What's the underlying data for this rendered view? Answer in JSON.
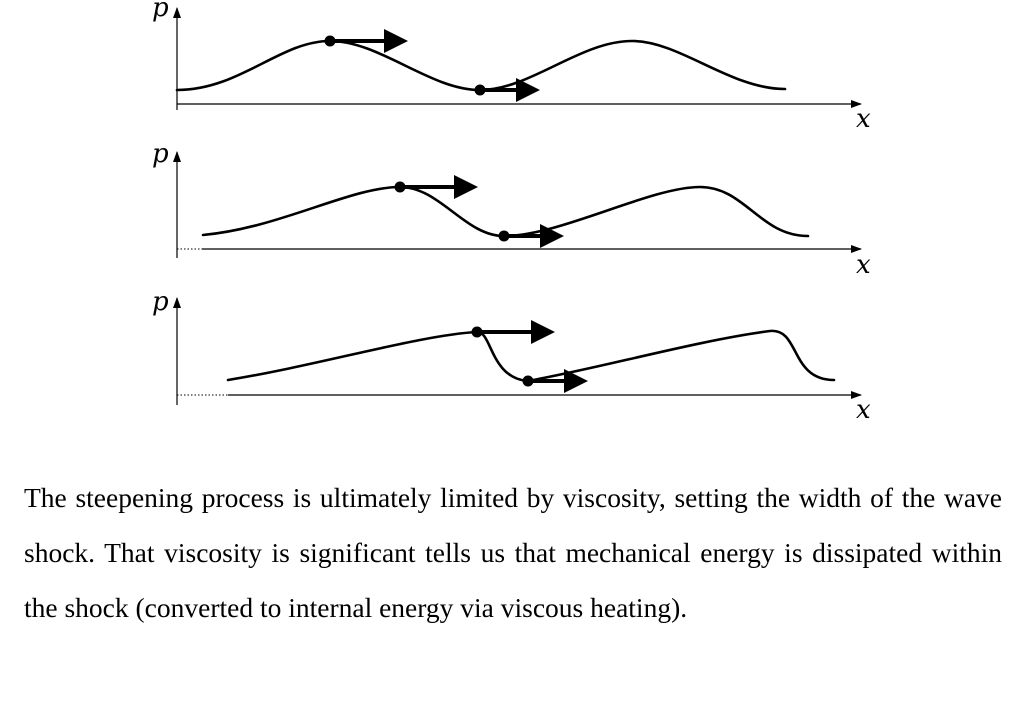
{
  "figure": {
    "panels": [
      {
        "y_label": "p",
        "x_label": "x"
      },
      {
        "y_label": "p",
        "x_label": "x"
      },
      {
        "y_label": "p",
        "x_label": "x"
      }
    ]
  },
  "caption": {
    "text": "The steepening process is ultimately limited by viscosity, setting the width of the wave shock. That viscosity is significant tells us that mechanical energy is dissipated within the shock (converted to internal energy via viscous heating)."
  }
}
